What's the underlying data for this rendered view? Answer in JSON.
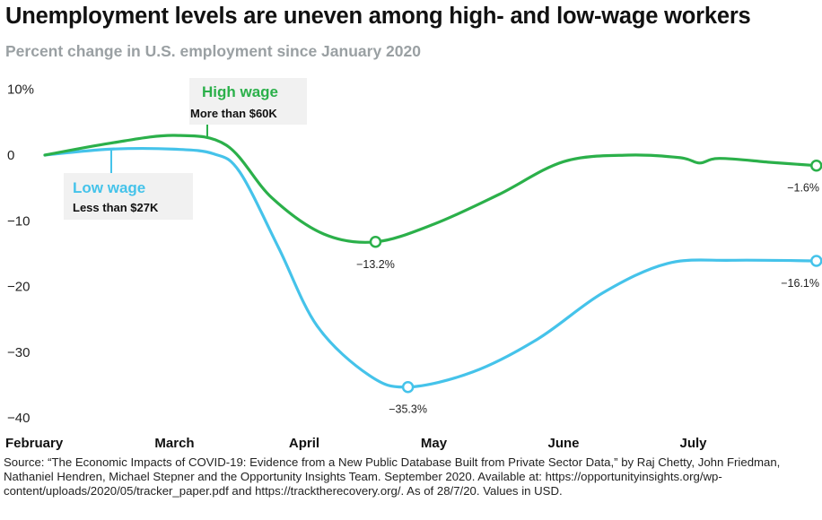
{
  "chart_data": {
    "type": "line",
    "title": "Unemployment levels are uneven among high- and low-wage workers",
    "subtitle": "Percent change in U.S. employment since January 2020",
    "x_tick_labels": [
      "February",
      "March",
      "April",
      "May",
      "June",
      "July"
    ],
    "y_tick_labels": [
      "10%",
      "0",
      "−10",
      "−20",
      "−30",
      "−40"
    ],
    "y_ticks": [
      10,
      0,
      -10,
      -20,
      -30,
      -40
    ],
    "ylim": [
      -40,
      10
    ],
    "grid": false,
    "series": [
      {
        "name": "High wage",
        "sublabel": "More than $60K",
        "color": "#2bb04a",
        "points": [
          [
            0,
            0
          ],
          [
            0.5,
            1.8
          ],
          [
            1.0,
            3.0
          ],
          [
            1.4,
            1.5
          ],
          [
            1.75,
            -6.5
          ],
          [
            2.15,
            -12.0
          ],
          [
            2.55,
            -13.2
          ],
          [
            3.0,
            -10.5
          ],
          [
            3.5,
            -6.0
          ],
          [
            4.0,
            -1.0
          ],
          [
            4.5,
            0.0
          ],
          [
            4.9,
            -0.4
          ],
          [
            5.05,
            -1.2
          ],
          [
            5.2,
            -0.5
          ],
          [
            5.6,
            -1.1
          ],
          [
            5.95,
            -1.6
          ]
        ],
        "markers": [
          {
            "x": 2.55,
            "y": -13.2,
            "label": "−13.2%"
          },
          {
            "x": 5.95,
            "y": -1.6,
            "label": "−1.6%"
          }
        ]
      },
      {
        "name": "Low wage",
        "sublabel": "Less than $27K",
        "color": "#45c3ea",
        "points": [
          [
            0,
            0
          ],
          [
            0.5,
            0.9
          ],
          [
            1.0,
            0.9
          ],
          [
            1.3,
            0.2
          ],
          [
            1.5,
            -2.5
          ],
          [
            1.8,
            -14.0
          ],
          [
            2.1,
            -26.0
          ],
          [
            2.5,
            -33.5
          ],
          [
            2.8,
            -35.3
          ],
          [
            3.3,
            -33.0
          ],
          [
            3.8,
            -28.0
          ],
          [
            4.3,
            -21.0
          ],
          [
            4.8,
            -16.5
          ],
          [
            5.3,
            -16.0
          ],
          [
            5.95,
            -16.1
          ]
        ],
        "markers": [
          {
            "x": 2.8,
            "y": -35.3,
            "label": "−35.3%"
          },
          {
            "x": 5.95,
            "y": -16.1,
            "label": "−16.1%"
          }
        ]
      }
    ]
  },
  "source": "Source: “The Economic Impacts of COVID-19: Evidence from a New Public Database Built from Private Sector Data,” by Raj Chetty, John Friedman, Nathaniel Hendren, Michael Stepner and the Opportunity Insights Team. September 2020. Available at: https://opportunityinsights.org/wp-content/uploads/2020/05/tracker_paper.pdf and https://tracktherecovery.org/. As of 28/7/20. Values in USD."
}
